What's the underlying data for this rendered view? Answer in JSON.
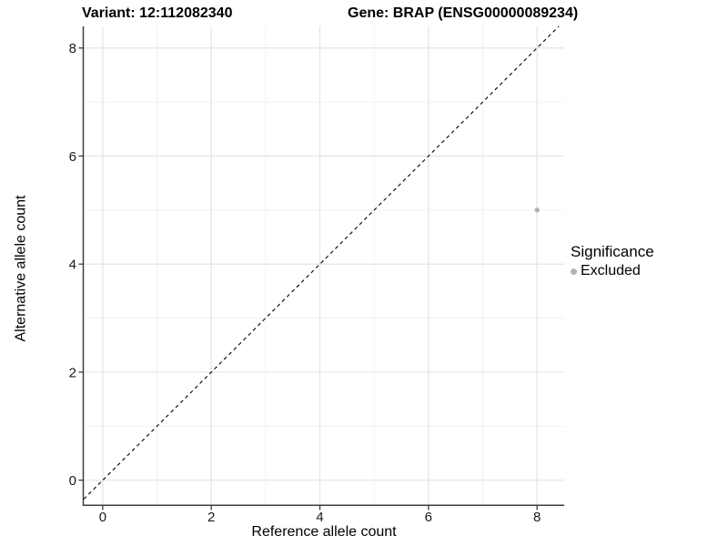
{
  "chart_data": {
    "type": "scatter",
    "title_left": "Variant: 12:112082340",
    "title_right": "Gene: BRAP (ENSG00000089234)",
    "xlabel": "Reference allele count",
    "ylabel": "Alternative allele count",
    "xlim": [
      -0.35,
      8.5
    ],
    "ylim": [
      -0.46,
      8.4
    ],
    "x_ticks": [
      0,
      2,
      4,
      6,
      8
    ],
    "y_ticks": [
      0,
      2,
      4,
      6,
      8
    ],
    "x_minor": [
      1,
      3,
      5,
      7
    ],
    "y_minor": [
      1,
      3,
      5,
      7
    ],
    "grid": true,
    "points": [
      {
        "x": 8,
        "y": 5,
        "series": "Excluded",
        "color": "#b3b3b3"
      }
    ],
    "abline": {
      "slope": 1,
      "intercept": 0,
      "linetype": "dashed",
      "color": "#000000"
    },
    "legend": {
      "title": "Significance",
      "position": "right",
      "entries": [
        {
          "label": "Excluded",
          "color": "#b3b3b3"
        }
      ]
    },
    "colors": {
      "grid_major": "#e4e4e4",
      "grid_minor": "#efefef",
      "axis_line": "#3c3c3c",
      "tick_label": "#1a1a1a",
      "background": "#ffffff"
    }
  }
}
